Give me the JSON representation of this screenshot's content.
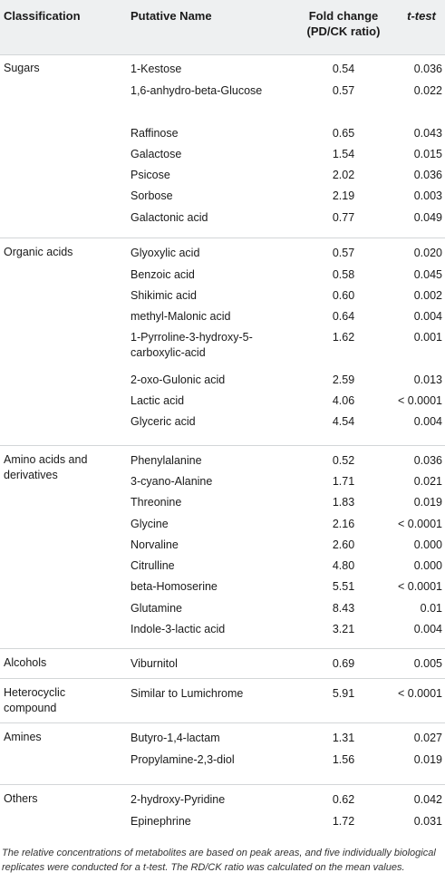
{
  "header": {
    "classification": "Classification",
    "name": "Putative Name",
    "fold_line1": "Fold change",
    "fold_line2": "(PD/CK ratio)",
    "ttest": "t-test"
  },
  "groups": [
    {
      "classification": "Sugars",
      "rows": [
        {
          "name": "1-Kestose",
          "fold": "0.54",
          "t": "0.036"
        },
        {
          "name": "1,6-anhydro-beta-Glucose",
          "fold": "0.57",
          "t": "0.022"
        },
        {
          "name": "Raffinose",
          "fold": "0.65",
          "t": "0.043"
        },
        {
          "name": "Galactose",
          "fold": "1.54",
          "t": "0.015"
        },
        {
          "name": "Psicose",
          "fold": "2.02",
          "t": "0.036"
        },
        {
          "name": "Sorbose",
          "fold": "2.19",
          "t": "0.003"
        },
        {
          "name": "Galactonic acid",
          "fold": "0.77",
          "t": "0.049"
        }
      ]
    },
    {
      "classification": "Organic acids",
      "rows": [
        {
          "name": "Glyoxylic acid",
          "fold": "0.57",
          "t": "0.020"
        },
        {
          "name": "Benzoic acid",
          "fold": "0.58",
          "t": "0.045"
        },
        {
          "name": "Shikimic acid",
          "fold": "0.60",
          "t": "0.002"
        },
        {
          "name": "methyl-Malonic acid",
          "fold": "0.64",
          "t": "0.004"
        },
        {
          "name": "1-Pyrroline-3-hydroxy-5-carboxylic-acid",
          "fold": "1.62",
          "t": "0.001"
        },
        {
          "name": "2-oxo-Gulonic acid",
          "fold": "2.59",
          "t": "0.013"
        },
        {
          "name": "Lactic acid",
          "fold": "4.06",
          "t": "< 0.0001"
        },
        {
          "name": "Glyceric acid",
          "fold": "4.54",
          "t": "0.004"
        }
      ]
    },
    {
      "classification": "Amino acids and derivatives",
      "rows": [
        {
          "name": "Phenylalanine",
          "fold": "0.52",
          "t": "0.036"
        },
        {
          "name": "3-cyano-Alanine",
          "fold": "1.71",
          "t": "0.021"
        },
        {
          "name": "Threonine",
          "fold": "1.83",
          "t": "0.019"
        },
        {
          "name": "Glycine",
          "fold": "2.16",
          "t": "< 0.0001"
        },
        {
          "name": "Norvaline",
          "fold": "2.60",
          "t": "0.000"
        },
        {
          "name": "Citrulline",
          "fold": "4.80",
          "t": "0.000"
        },
        {
          "name": "beta-Homoserine",
          "fold": "5.51",
          "t": "< 0.0001"
        },
        {
          "name": "Glutamine",
          "fold": "8.43",
          "t": "0.01"
        },
        {
          "name": "Indole-3-lactic acid",
          "fold": "3.21",
          "t": "0.004"
        }
      ]
    },
    {
      "classification": "Alcohols",
      "rows": [
        {
          "name": "Viburnitol",
          "fold": "0.69",
          "t": "0.005"
        }
      ]
    },
    {
      "classification": "Heterocyclic compound",
      "rows": [
        {
          "name": "Similar to Lumichrome",
          "fold": "5.91",
          "t": "< 0.0001"
        }
      ]
    },
    {
      "classification": "Amines",
      "rows": [
        {
          "name": "Butyro-1,4-lactam",
          "fold": "1.31",
          "t": "0.027"
        },
        {
          "name": "Propylamine-2,3-diol",
          "fold": "1.56",
          "t": "0.019"
        }
      ]
    },
    {
      "classification": "Others",
      "rows": [
        {
          "name": "2-hydroxy-Pyridine",
          "fold": "0.62",
          "t": "0.042"
        },
        {
          "name": "Epinephrine",
          "fold": "1.72",
          "t": "0.031"
        }
      ]
    }
  ],
  "footnote": "The relative concentrations of metabolites are based on peak areas, and five individually biological replicates were conducted for a t-test. The RD/CK ratio was calculated on the mean values."
}
